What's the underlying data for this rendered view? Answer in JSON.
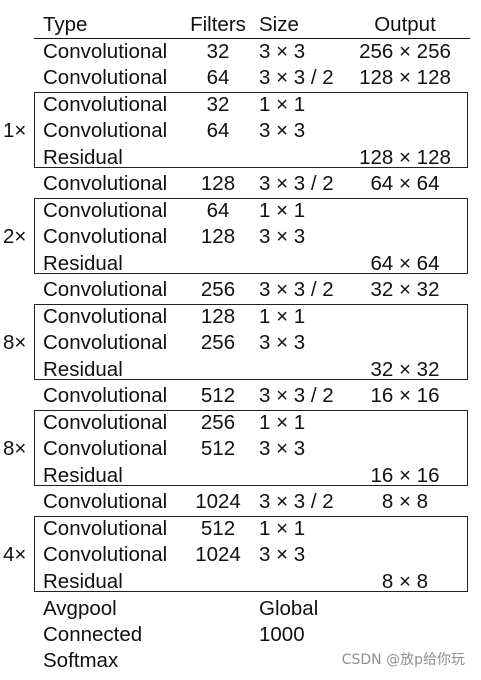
{
  "headers": {
    "type": "Type",
    "filters": "Filters",
    "size": "Size",
    "output": "Output"
  },
  "rows": [
    {
      "type": "Convolutional",
      "filters": "32",
      "size": "3 × 3",
      "output": "256 × 256"
    },
    {
      "type": "Convolutional",
      "filters": "64",
      "size": "3 × 3 / 2",
      "output": "128 × 128"
    },
    {
      "type": "Convolutional",
      "filters": "32",
      "size": "1 × 1",
      "output": ""
    },
    {
      "type": "Convolutional",
      "filters": "64",
      "size": "3 × 3",
      "output": ""
    },
    {
      "type": "Residual",
      "filters": "",
      "size": "",
      "output": "128 × 128"
    },
    {
      "type": "Convolutional",
      "filters": "128",
      "size": "3 × 3 / 2",
      "output": "64 × 64"
    },
    {
      "type": "Convolutional",
      "filters": "64",
      "size": "1 × 1",
      "output": ""
    },
    {
      "type": "Convolutional",
      "filters": "128",
      "size": "3 × 3",
      "output": ""
    },
    {
      "type": "Residual",
      "filters": "",
      "size": "",
      "output": "64 × 64"
    },
    {
      "type": "Convolutional",
      "filters": "256",
      "size": "3 × 3 / 2",
      "output": "32 × 32"
    },
    {
      "type": "Convolutional",
      "filters": "128",
      "size": "1 × 1",
      "output": ""
    },
    {
      "type": "Convolutional",
      "filters": "256",
      "size": "3 × 3",
      "output": ""
    },
    {
      "type": "Residual",
      "filters": "",
      "size": "",
      "output": "32 × 32"
    },
    {
      "type": "Convolutional",
      "filters": "512",
      "size": "3 × 3 / 2",
      "output": "16 × 16"
    },
    {
      "type": "Convolutional",
      "filters": "256",
      "size": "1 × 1",
      "output": ""
    },
    {
      "type": "Convolutional",
      "filters": "512",
      "size": "3 × 3",
      "output": ""
    },
    {
      "type": "Residual",
      "filters": "",
      "size": "",
      "output": "16 × 16"
    },
    {
      "type": "Convolutional",
      "filters": "1024",
      "size": "3 × 3 / 2",
      "output": "8 × 8"
    },
    {
      "type": "Convolutional",
      "filters": "512",
      "size": "1 × 1",
      "output": ""
    },
    {
      "type": "Convolutional",
      "filters": "1024",
      "size": "3 × 3",
      "output": ""
    },
    {
      "type": "Residual",
      "filters": "",
      "size": "",
      "output": "8 × 8"
    },
    {
      "type": "Avgpool",
      "filters": "",
      "size": "Global",
      "output": ""
    },
    {
      "type": "Connected",
      "filters": "",
      "size": "1000",
      "output": ""
    },
    {
      "type": "Softmax",
      "filters": "",
      "size": "",
      "output": ""
    }
  ],
  "blocks": [
    {
      "multiplier": "1×"
    },
    {
      "multiplier": "2×"
    },
    {
      "multiplier": "8×"
    },
    {
      "multiplier": "8×"
    },
    {
      "multiplier": "4×"
    }
  ],
  "watermark": "CSDN @放p给你玩"
}
